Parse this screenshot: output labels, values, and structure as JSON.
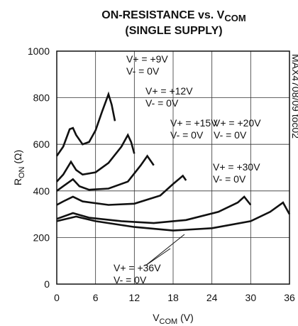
{
  "chart_data": {
    "type": "line",
    "title": {
      "text": "ON-RESISTANCE vs. V",
      "subscript": "COM"
    },
    "subtitle": "(SINGLE SUPPLY)",
    "xlabel": {
      "text": "V",
      "subscript": "COM",
      "suffix": " (V)"
    },
    "ylabel": {
      "text": "R",
      "subscript": "ON",
      "suffix": " (Ω)"
    },
    "side_note": "MAX4708/09 toc02",
    "xlim": [
      0,
      36
    ],
    "xticks": [
      0,
      6,
      12,
      18,
      24,
      30,
      36
    ],
    "ylim": [
      0,
      1000
    ],
    "yticks": [
      0,
      200,
      400,
      600,
      800,
      1000
    ],
    "grid": true,
    "series": [
      {
        "labels": [
          "V+ = +9V",
          "V- = 0V"
        ],
        "color": "#111111",
        "x": [
          0,
          1,
          2,
          2.5,
          3,
          4,
          5,
          6,
          7,
          8,
          8.5,
          9
        ],
        "values": [
          550,
          590,
          665,
          670,
          640,
          600,
          610,
          660,
          740,
          815,
          770,
          700
        ]
      },
      {
        "labels": [
          "V+ = +12V",
          "V- = 0V"
        ],
        "color": "#111111",
        "x": [
          0,
          1,
          2.2,
          3,
          4,
          6,
          8,
          10,
          11,
          11.5,
          12
        ],
        "values": [
          440,
          470,
          525,
          490,
          470,
          480,
          520,
          590,
          640,
          610,
          560
        ]
      },
      {
        "labels": [
          "V+ = +15V",
          "V- = 0V"
        ],
        "color": "#111111",
        "x": [
          0,
          1,
          2.5,
          3.5,
          5,
          8,
          11,
          13,
          14,
          15
        ],
        "values": [
          400,
          420,
          450,
          420,
          405,
          410,
          440,
          510,
          550,
          510
        ]
      },
      {
        "labels": [
          "V+ = +20V",
          "V- = 0V"
        ],
        "color": "#111111",
        "x": [
          0,
          1,
          2.5,
          4,
          8,
          12,
          16,
          18,
          19.5,
          20
        ],
        "values": [
          340,
          355,
          375,
          355,
          340,
          345,
          380,
          430,
          465,
          445
        ]
      },
      {
        "labels": [
          "V+ = +30V",
          "V- = 0V"
        ],
        "color": "#111111",
        "x": [
          0,
          2.5,
          5,
          10,
          15,
          20,
          25,
          28,
          29,
          30
        ],
        "values": [
          280,
          305,
          285,
          270,
          262,
          275,
          310,
          350,
          375,
          340
        ]
      },
      {
        "labels": [
          "V+ = +36V",
          "V- = 0V"
        ],
        "color": "#111111",
        "x": [
          0,
          3,
          6,
          12,
          18,
          24,
          30,
          33,
          35,
          36
        ],
        "values": [
          270,
          290,
          270,
          245,
          230,
          240,
          270,
          310,
          350,
          300
        ]
      }
    ]
  }
}
